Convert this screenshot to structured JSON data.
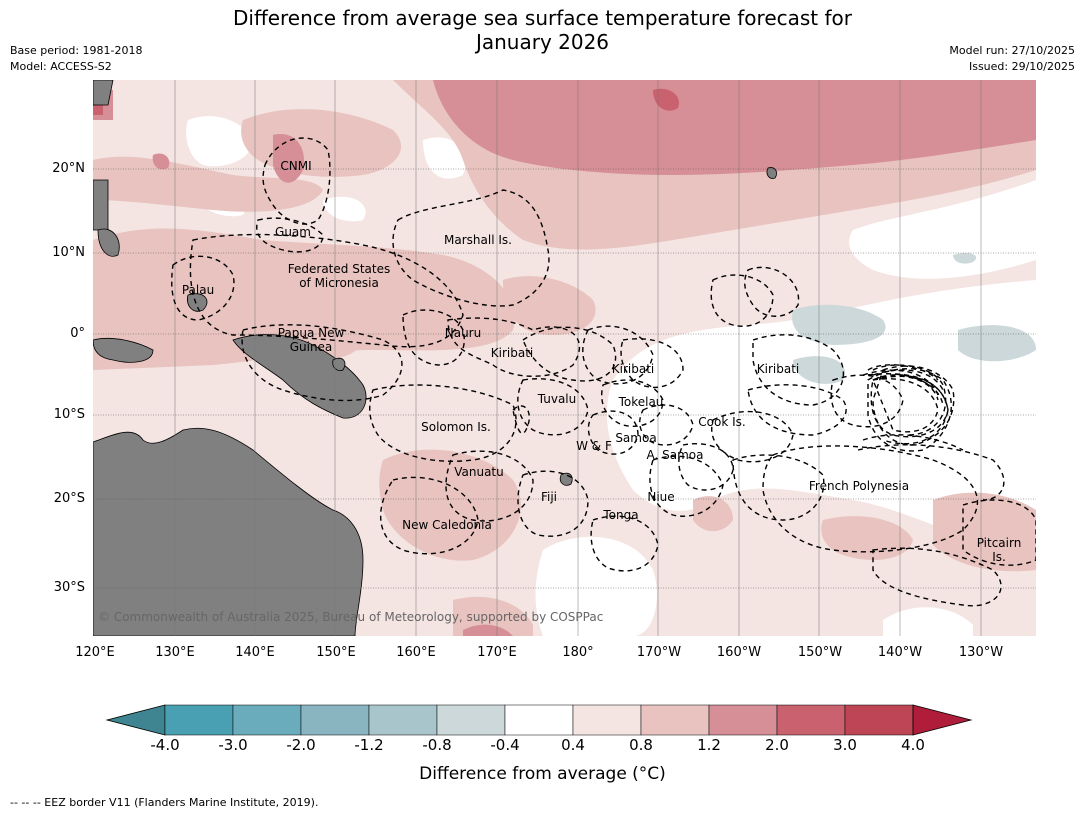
{
  "title": {
    "line1": "Difference from average sea surface temperature forecast for",
    "line2": "January 2026"
  },
  "meta_left": [
    "Base period: 1981-2018",
    "Model: ACCESS-S2"
  ],
  "meta_right": [
    "Model run: 27/10/2025",
    "Issued: 29/10/2025"
  ],
  "lat_ticks": [
    "20°N",
    "10°N",
    "0°",
    "10°S",
    "20°S",
    "30°S"
  ],
  "lon_ticks": [
    "120°E",
    "130°E",
    "140°E",
    "150°E",
    "160°E",
    "170°E",
    "180°",
    "170°W",
    "160°W",
    "150°W",
    "140°W",
    "130°W"
  ],
  "eez_labels": [
    "CNMI",
    "Guam",
    "Marshall Is.",
    "Federated States",
    "of Micronesia",
    "Palau",
    "Papua New",
    "Guinea",
    "Nauru",
    "Kiribati",
    "Kiribati",
    "Kiribati",
    "Tuvalu",
    "Tokelau",
    "Cook Is.",
    "Solomon Is.",
    "W & F",
    "Samoa",
    "A. Samoa",
    "Vanuatu",
    "Fiji",
    "Niue",
    "Tonga",
    "French Polynesia",
    "New Caledonia",
    "Pitcairn",
    "Is."
  ],
  "copyright": "© Commonwealth of Australia 2025, Bureau of Meteorology, supported by COSPPac",
  "colorbar": {
    "labels": [
      "-4.0",
      "-3.0",
      "-2.0",
      "-1.2",
      "-0.8",
      "-0.4",
      "0.4",
      "0.8",
      "1.2",
      "2.0",
      "3.0",
      "4.0"
    ],
    "colors": [
      "#3e8591",
      "#4aa0b3",
      "#6aacbb",
      "#88b5c0",
      "#a7c5ca",
      "#ccd8da",
      "#ffffff",
      "#f4e4e2",
      "#e8c3bf",
      "#d68f96",
      "#c9616e",
      "#bd4556",
      "#b01d3b"
    ],
    "title": "Difference from average (°C)"
  },
  "footer": "--  --  -- EEZ border V11 (Flanders Marine Institute, 2019).",
  "colors": {
    "land": "#808080",
    "anomaly_04_08": "#f4e4e2",
    "anomaly_08_12": "#e8c3bf",
    "anomaly_12_20": "#d68f96",
    "anomaly_20_30": "#c9616e",
    "anomaly_neg": "#ccd8da"
  }
}
